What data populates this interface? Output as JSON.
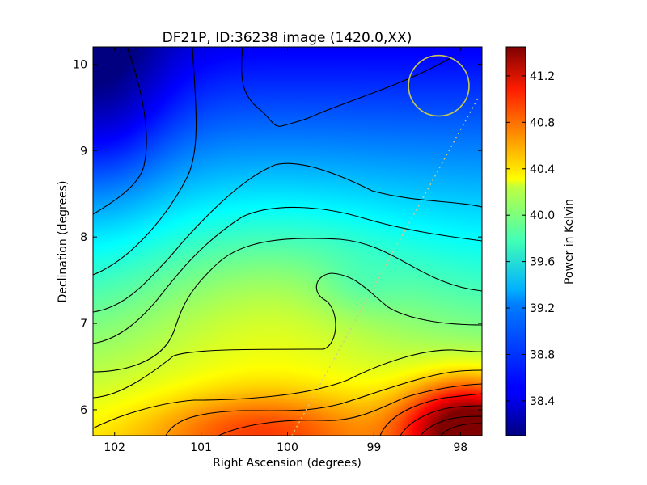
{
  "chart_data": {
    "type": "heatmap",
    "title": "DF21P, ID:36238 image (1420.0,XX)",
    "xlabel": "Right Ascension (degrees)",
    "ylabel": "Declination (degrees)",
    "xlim": [
      102.25,
      97.75
    ],
    "ylim": [
      5.7,
      10.2
    ],
    "x_ticks": [
      102,
      101,
      100,
      99,
      98
    ],
    "x_tick_labels": [
      "102",
      "101",
      "100",
      "99",
      "98"
    ],
    "y_ticks": [
      6,
      7,
      8,
      9,
      10
    ],
    "y_tick_labels": [
      "6",
      "7",
      "8",
      "9",
      "10"
    ],
    "colorbar": {
      "label": "Power in Kelvin",
      "range": [
        38.1,
        41.45
      ],
      "ticks": [
        38.4,
        38.8,
        39.2,
        39.6,
        40.0,
        40.4,
        40.8,
        41.2
      ],
      "tick_labels": [
        "38.4",
        "38.8",
        "39.2",
        "39.6",
        "40.0",
        "40.4",
        "40.8",
        "41.2"
      ],
      "colormap": "jet"
    },
    "field": {
      "description_units": "Kelvin",
      "hot_spot": {
        "ra": 97.9,
        "dec": 5.8,
        "value": 41.4
      },
      "cold_spot": {
        "ra": 102.2,
        "dec": 9.9,
        "value": 38.15
      }
    },
    "annotations": [
      {
        "type": "circle",
        "ra": 98.25,
        "dec": 9.75,
        "radius_deg": 0.35,
        "color": "#c8c850"
      },
      {
        "type": "dotted_track",
        "from": {
          "ra": 97.8,
          "dec": 9.6
        },
        "to": {
          "ra": 99.95,
          "dec": 5.7
        },
        "color": "#cccc88"
      }
    ]
  }
}
